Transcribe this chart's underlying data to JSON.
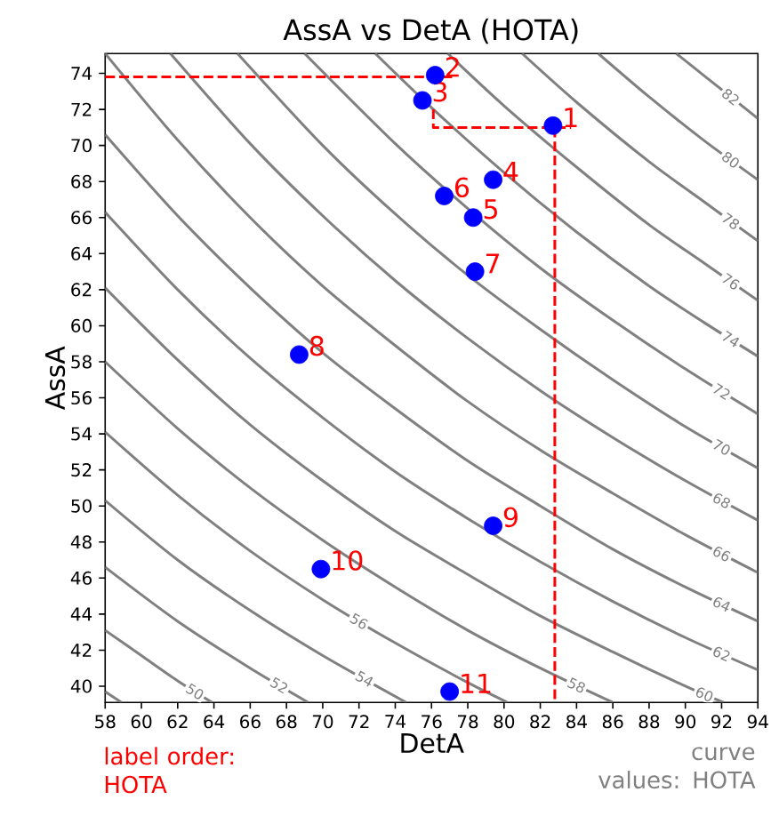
{
  "chart_data": {
    "type": "scatter",
    "title": "AssA vs DetA (HOTA)",
    "xlabel": "DetA",
    "ylabel": "AssA",
    "xlim": [
      58,
      94
    ],
    "ylim": [
      39.1,
      75.1
    ],
    "xticks": [
      58,
      60,
      62,
      64,
      66,
      68,
      70,
      72,
      74,
      76,
      78,
      80,
      82,
      84,
      86,
      88,
      90,
      92,
      94
    ],
    "yticks": [
      40,
      42,
      44,
      46,
      48,
      50,
      52,
      54,
      56,
      58,
      60,
      62,
      64,
      66,
      68,
      70,
      72,
      74
    ],
    "series": [
      {
        "type": "line",
        "color": "#808080",
        "x": [
          58,
          58.9
        ],
        "values": [
          39.7,
          39.1
        ]
      },
      {
        "type": "line",
        "color": "#808080",
        "name": "50",
        "x": [
          58,
          60,
          62,
          63.9
        ],
        "values": [
          43.1,
          41.7,
          40.3,
          39.1
        ]
      },
      {
        "type": "line",
        "color": "#808080",
        "name": "52",
        "x": [
          58,
          62,
          66,
          69.2
        ],
        "values": [
          46.6,
          43.6,
          41.0,
          39.1
        ]
      },
      {
        "type": "line",
        "color": "#808080",
        "name": "54",
        "x": [
          58,
          62,
          66,
          70,
          74.6
        ],
        "values": [
          50.3,
          47.0,
          44.2,
          41.7,
          39.1
        ]
      },
      {
        "type": "line",
        "color": "#808080",
        "name": "56",
        "x": [
          58,
          62,
          66,
          70,
          74,
          78,
          80.2
        ],
        "values": [
          54.1,
          50.6,
          47.5,
          44.8,
          42.4,
          40.2,
          39.1
        ]
      },
      {
        "type": "line",
        "color": "#808080",
        "name": "58",
        "x": [
          58,
          62,
          66,
          70,
          74,
          78,
          82,
          86
        ],
        "values": [
          58.0,
          54.3,
          51.0,
          48.1,
          45.5,
          43.1,
          41.0,
          39.1
        ]
      },
      {
        "type": "line",
        "color": "#808080",
        "name": "60",
        "x": [
          58,
          62,
          66,
          70,
          74,
          78,
          82,
          86,
          90,
          92.1
        ],
        "values": [
          62.1,
          58.1,
          54.5,
          51.4,
          48.6,
          46.2,
          43.9,
          41.9,
          40.0,
          39.1
        ]
      },
      {
        "type": "line",
        "color": "#808080",
        "name": "62",
        "x": [
          58,
          62,
          66,
          70,
          74,
          78,
          82,
          86,
          90,
          94
        ],
        "values": [
          66.3,
          62.0,
          58.2,
          54.9,
          51.9,
          49.3,
          46.9,
          44.7,
          42.7,
          40.9
        ]
      },
      {
        "type": "line",
        "color": "#808080",
        "name": "64",
        "x": [
          58,
          62,
          66,
          70,
          74,
          78,
          82,
          86,
          90,
          94
        ],
        "values": [
          70.6,
          66.1,
          62.1,
          58.5,
          55.4,
          52.5,
          50.0,
          47.6,
          45.5,
          43.6
        ]
      },
      {
        "type": "line",
        "color": "#808080",
        "name": "66",
        "x": [
          58,
          62,
          66,
          70,
          74,
          78,
          82,
          86,
          90,
          94
        ],
        "values": [
          75.1,
          70.3,
          66.0,
          62.2,
          58.9,
          55.8,
          53.1,
          50.7,
          48.4,
          46.3
        ]
      },
      {
        "type": "line",
        "color": "#808080",
        "name": "68",
        "x": [
          61.6,
          66,
          70,
          74,
          78,
          82,
          86,
          90,
          94
        ],
        "values": [
          75.1,
          70.1,
          66.1,
          62.5,
          59.3,
          56.4,
          53.8,
          51.4,
          49.2
        ]
      },
      {
        "type": "line",
        "color": "#808080",
        "name": "70",
        "x": [
          65.3,
          70,
          74,
          78,
          82,
          86,
          90,
          94
        ],
        "values": [
          75.1,
          70.0,
          66.2,
          62.8,
          59.8,
          57.0,
          54.4,
          52.1
        ]
      },
      {
        "type": "line",
        "color": "#808080",
        "name": "72",
        "x": [
          69.0,
          74,
          78,
          82,
          86,
          90,
          94
        ],
        "values": [
          75.1,
          70.1,
          66.5,
          63.2,
          60.3,
          57.6,
          55.1
        ]
      },
      {
        "type": "line",
        "color": "#808080",
        "name": "74",
        "x": [
          72.9,
          76,
          80,
          84,
          88,
          91,
          94
        ],
        "values": [
          75.1,
          72.1,
          68.5,
          65.2,
          62.2,
          60.2,
          58.3
        ]
      },
      {
        "type": "line",
        "color": "#808080",
        "name": "76",
        "x": [
          76.9,
          80,
          84,
          88,
          91,
          94
        ],
        "values": [
          75.1,
          72.2,
          68.8,
          65.6,
          63.5,
          61.4
        ]
      },
      {
        "type": "line",
        "color": "#808080",
        "name": "78",
        "x": [
          81.0,
          84,
          88,
          91,
          94
        ],
        "values": [
          75.1,
          72.4,
          69.1,
          66.9,
          64.7
        ]
      },
      {
        "type": "line",
        "color": "#808080",
        "name": "80",
        "x": [
          85.2,
          88,
          91,
          94
        ],
        "values": [
          75.1,
          72.7,
          70.3,
          68.1
        ]
      },
      {
        "type": "line",
        "color": "#808080",
        "name": "82",
        "x": [
          89.5,
          91,
          94
        ],
        "values": [
          75.1,
          73.9,
          71.5
        ]
      },
      {
        "type": "line",
        "color": "#ff0000",
        "line_style": "dashed",
        "x": [
          58,
          77.3
        ],
        "values": [
          73.8,
          73.8
        ]
      },
      {
        "type": "line",
        "color": "#ff0000",
        "line_style": "dashed",
        "x": [
          76.1,
          76.1,
          83.7
        ],
        "values": [
          72.0,
          71.0,
          71.0
        ]
      },
      {
        "type": "line",
        "color": "#ff0000",
        "line_style": "dashed",
        "x": [
          82.8,
          82.8
        ],
        "values": [
          71.0,
          39.1
        ]
      },
      {
        "color": "#0000ff",
        "marker": "circle",
        "x": [
          82.7,
          76.2,
          75.5,
          79.4,
          78.3,
          76.7,
          78.4,
          68.7,
          79.4,
          69.9,
          77.0
        ],
        "values": [
          71.1,
          73.9,
          72.5,
          68.1,
          66.0,
          67.2,
          63.0,
          58.4,
          48.9,
          46.5,
          39.7
        ]
      }
    ],
    "annotations": [
      {
        "text": "1",
        "x": 82.7,
        "y": 71.1
      },
      {
        "text": "2",
        "x": 76.2,
        "y": 73.9
      },
      {
        "text": "3",
        "x": 75.5,
        "y": 72.5
      },
      {
        "text": "4",
        "x": 79.4,
        "y": 68.1
      },
      {
        "text": "5",
        "x": 78.3,
        "y": 66.0
      },
      {
        "text": "6",
        "x": 76.7,
        "y": 67.2
      },
      {
        "text": "7",
        "x": 78.4,
        "y": 63.0
      },
      {
        "text": "8",
        "x": 68.7,
        "y": 58.4
      },
      {
        "text": "9",
        "x": 79.4,
        "y": 48.9
      },
      {
        "text": "10",
        "x": 69.9,
        "y": 46.5
      },
      {
        "text": "11",
        "x": 77.0,
        "y": 39.7
      },
      "label order: HOTA",
      "curve values: HOTA"
    ]
  }
}
